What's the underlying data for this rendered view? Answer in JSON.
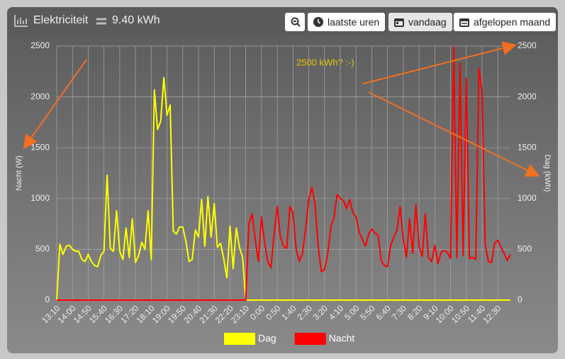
{
  "header": {
    "title": "Elektriciteit",
    "value": "9.40 kWh",
    "buttons": [
      "laatste uren",
      "vandaag",
      "afgelopen maand"
    ]
  },
  "chart_data": {
    "type": "line",
    "categories": [
      "13:10",
      null,
      null,
      null,
      null,
      "14:00",
      null,
      null,
      null,
      null,
      "14:50",
      null,
      null,
      null,
      null,
      "15:40",
      null,
      null,
      null,
      null,
      "16:30",
      null,
      null,
      null,
      null,
      "17:20",
      null,
      null,
      null,
      null,
      "18:10",
      null,
      null,
      null,
      null,
      "19:00",
      null,
      null,
      null,
      null,
      "19:50",
      null,
      null,
      null,
      null,
      "20:40",
      null,
      null,
      null,
      null,
      "21:30",
      null,
      null,
      null,
      null,
      "22:20",
      null,
      null,
      null,
      null,
      "23:10",
      null,
      null,
      null,
      null,
      "0:00",
      null,
      null,
      null,
      null,
      "0:50",
      null,
      null,
      null,
      null,
      "1:40",
      null,
      null,
      null,
      null,
      "2:30",
      null,
      null,
      null,
      null,
      "3:20",
      null,
      null,
      null,
      null,
      "4:10",
      null,
      null,
      null,
      null,
      "5:00",
      null,
      null,
      null,
      null,
      "5:50",
      null,
      null,
      null,
      null,
      "6:40",
      null,
      null,
      null,
      null,
      "7:30",
      null,
      null,
      null,
      null,
      "8:20",
      null,
      null,
      null,
      null,
      "9:10",
      null,
      null,
      null,
      null,
      "10:00",
      null,
      null,
      null,
      null,
      "10:50",
      null,
      null,
      null,
      null,
      "11:40",
      null,
      null,
      null,
      null,
      "12:30",
      null,
      null,
      null,
      null
    ],
    "series": [
      {
        "name": "Dag",
        "color": "#ffff00",
        "axis": "y2",
        "values": [
          0,
          550,
          450,
          530,
          540,
          500,
          480,
          480,
          400,
          380,
          450,
          380,
          340,
          330,
          440,
          480,
          1230,
          510,
          480,
          880,
          480,
          400,
          710,
          420,
          800,
          370,
          440,
          570,
          500,
          880,
          400,
          2070,
          1680,
          1760,
          2190,
          1820,
          1920,
          680,
          650,
          720,
          720,
          580,
          380,
          400,
          690,
          620,
          990,
          530,
          1020,
          620,
          950,
          520,
          560,
          410,
          220,
          730,
          310,
          710,
          520,
          420,
          0,
          0,
          0,
          0,
          0,
          0,
          0,
          0,
          0,
          0,
          0,
          0,
          0,
          0,
          0,
          0,
          0,
          0,
          0,
          0,
          0,
          0,
          0,
          0,
          0,
          0,
          0,
          0,
          0,
          0,
          0,
          0,
          0,
          0,
          0,
          0,
          0,
          0,
          0,
          0,
          0,
          0,
          0,
          0,
          0,
          0,
          0,
          0,
          0,
          0,
          0,
          0,
          0,
          0,
          0,
          0,
          0,
          0,
          0,
          0,
          0,
          0,
          0,
          0,
          0,
          0,
          0,
          0,
          0,
          0,
          0,
          0,
          0,
          0,
          0,
          0,
          0,
          0,
          0,
          0,
          0,
          0,
          0,
          0,
          0
        ]
      },
      {
        "name": "Nacht",
        "color": "#ff0000",
        "values": [
          0,
          0,
          0,
          0,
          0,
          0,
          0,
          0,
          0,
          0,
          0,
          0,
          0,
          0,
          0,
          0,
          0,
          0,
          0,
          0,
          0,
          0,
          0,
          0,
          0,
          0,
          0,
          0,
          0,
          0,
          0,
          0,
          0,
          0,
          0,
          0,
          0,
          0,
          0,
          0,
          0,
          0,
          0,
          0,
          0,
          0,
          0,
          0,
          0,
          0,
          0,
          0,
          0,
          0,
          0,
          0,
          0,
          0,
          0,
          0,
          0,
          750,
          850,
          600,
          380,
          820,
          560,
          380,
          320,
          650,
          920,
          620,
          530,
          510,
          920,
          860,
          500,
          380,
          460,
          700,
          990,
          1110,
          940,
          520,
          280,
          300,
          450,
          720,
          810,
          1040,
          1000,
          980,
          900,
          990,
          860,
          820,
          670,
          600,
          530,
          650,
          700,
          660,
          640,
          390,
          340,
          330,
          540,
          620,
          690,
          920,
          600,
          420,
          800,
          460,
          940,
          530,
          430,
          850,
          420,
          380,
          540,
          360,
          470,
          490,
          470,
          410,
          2490,
          420,
          2330,
          440,
          2180,
          410,
          420,
          400,
          2280,
          2050,
          550,
          380,
          370,
          560,
          590,
          520,
          460,
          390,
          450
        ]
      }
    ],
    "ylabel": "Nacht (W)",
    "y2label": "Dag (kWh)",
    "ylim": [
      0,
      2500
    ],
    "yticks": [
      0,
      500,
      1000,
      1500,
      2000,
      2500
    ],
    "y2lim": [
      0,
      2500
    ],
    "y2ticks": [
      0,
      500,
      1000,
      1500,
      2000,
      2500
    ],
    "annotation": "2500 kWh? :-)",
    "grid": true,
    "legend": "bottom"
  }
}
